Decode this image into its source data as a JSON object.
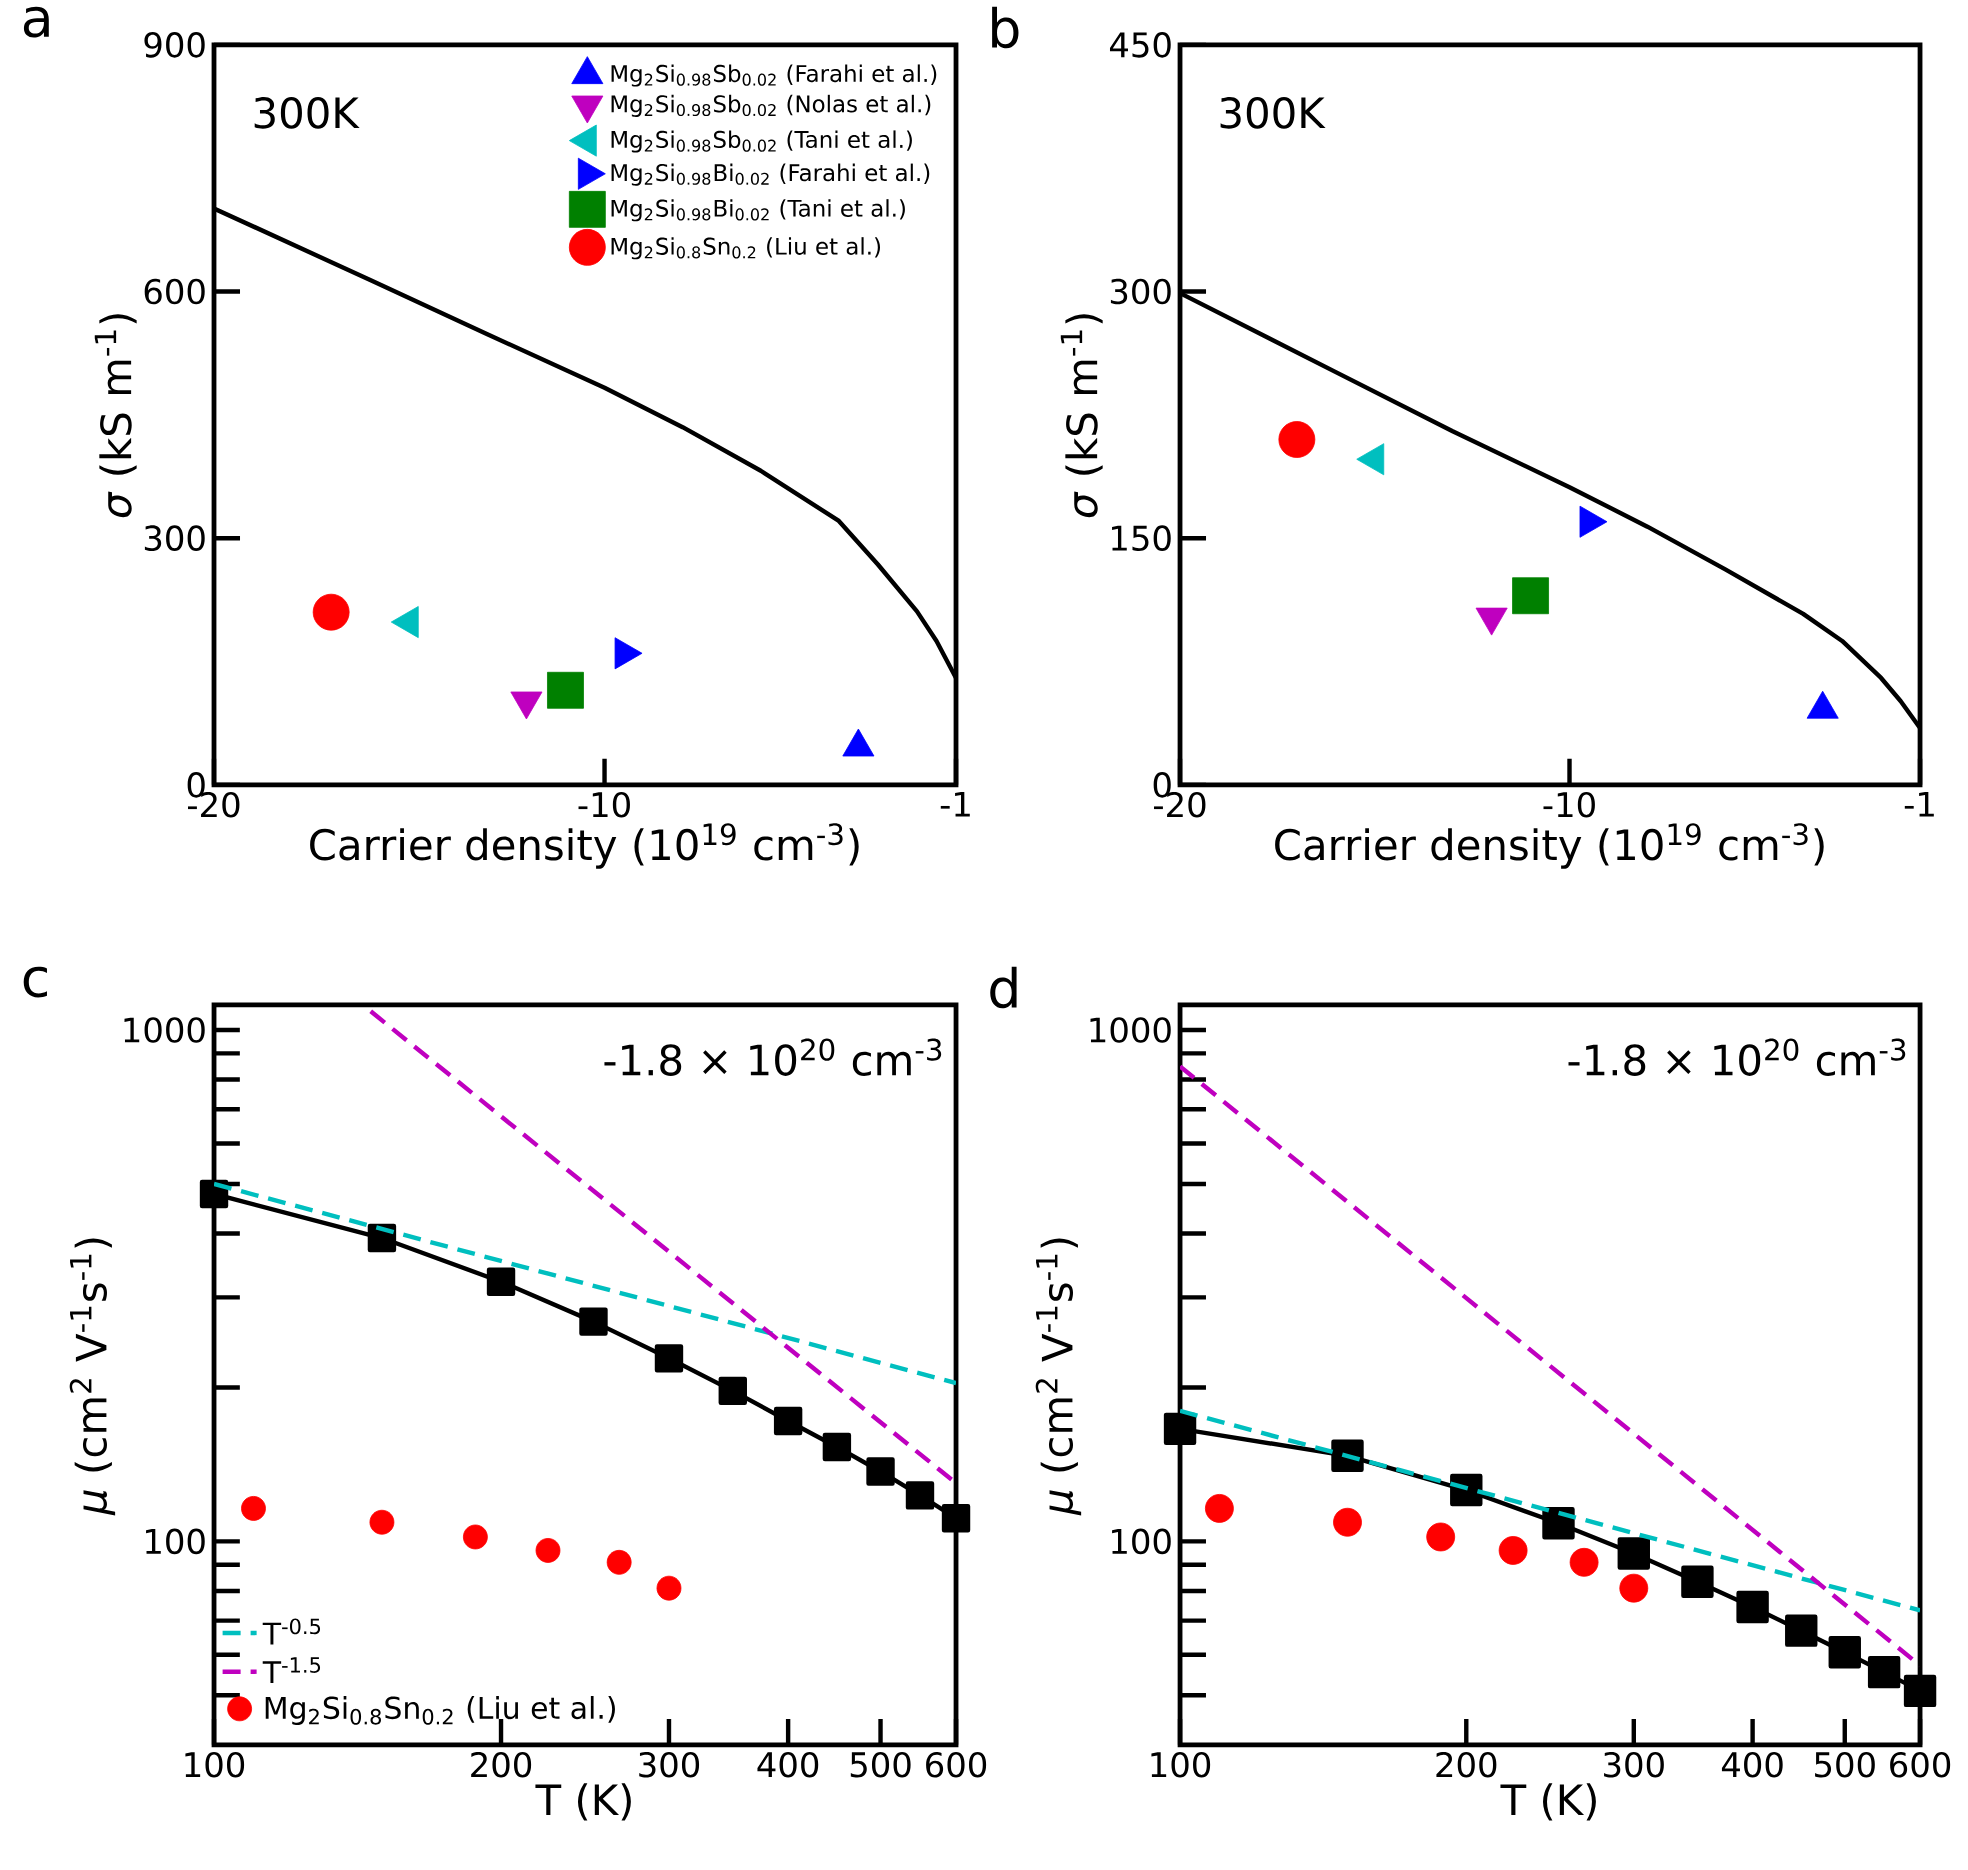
{
  "chart_data": [
    {
      "type": "scatter",
      "title": "a",
      "xlabel": "Carrier density (10$^{19}$ cm$^{-3}$)",
      "ylabel": "*σ* (kS m$^{-1}$)",
      "xlim": [
        -20,
        -1
      ],
      "ylim": [
        0,
        900
      ],
      "xticks": [
        -20,
        -10,
        -1
      ],
      "yticks": [
        0,
        300,
        600,
        900
      ],
      "annotations": [
        "300K"
      ],
      "legend": "top right",
      "series": [
        {
          "type": "line",
          "color": "#000000",
          "line_style": "solid",
          "marker": "none",
          "x": [
            -20,
            -16,
            -13,
            -10,
            -8,
            -6,
            -4,
            -3,
            -2,
            -1.5,
            -1
          ],
          "values": [
            701,
            614,
            548,
            483,
            435,
            382,
            321,
            268,
            211,
            175,
            130
          ]
        },
        {
          "name": "Mg$_{2}$Si$_{0.98}$Sb$_{0.02}$ (Farahi et al.)",
          "color": "#0000ff",
          "marker": "triangle",
          "x": [
            -3.5
          ],
          "values": [
            46
          ]
        },
        {
          "name": "Mg$_{2}$Si$_{0.98}$Sb$_{0.02}$ (Nolas et al.)",
          "color": "#bf00bf",
          "marker": "triangle-down",
          "x": [
            -12
          ],
          "values": [
            102
          ]
        },
        {
          "name": "Mg$_{2}$Si$_{0.98}$Sb$_{0.02}$ (Tani et al.)",
          "color": "#00bfbf",
          "marker": "triangle-left",
          "x": [
            -15
          ],
          "values": [
            198
          ]
        },
        {
          "name": "Mg$_{2}$Si$_{0.98}$Bi$_{0.02}$ (Farahi et al.)",
          "color": "#0000ff",
          "marker": "triangle-right",
          "x": [
            -9.5
          ],
          "values": [
            160
          ]
        },
        {
          "name": "Mg$_{2}$Si$_{0.98}$Bi$_{0.02}$ (Tani et al.)",
          "color": "#008000",
          "marker": "square",
          "x": [
            -11
          ],
          "values": [
            115
          ]
        },
        {
          "name": "Mg$_{2}$Si$_{0.8}$Sn$_{0.2}$ (Liu et al.)",
          "color": "#ff0000",
          "marker": "circle",
          "x": [
            -17
          ],
          "values": [
            210
          ]
        }
      ]
    },
    {
      "type": "scatter",
      "title": "b",
      "xlabel": "Carrier density (10$^{19}$ cm$^{-3}$)",
      "ylabel": "*σ* (kS m$^{-1}$)",
      "xlim": [
        -20,
        -1
      ],
      "ylim": [
        0,
        450
      ],
      "xticks": [
        -20,
        -10,
        -1
      ],
      "yticks": [
        0,
        150,
        300,
        450
      ],
      "annotations": [
        "300K"
      ],
      "series": [
        {
          "type": "line",
          "color": "#000000",
          "line_style": "solid",
          "marker": "none",
          "x": [
            -20,
            -16,
            -13,
            -10,
            -8,
            -6,
            -4,
            -3,
            -2,
            -1.5,
            -1
          ],
          "values": [
            299,
            251,
            215,
            181,
            157,
            131,
            104,
            87.5,
            65,
            51,
            34.6
          ]
        },
        {
          "color": "#0000ff",
          "marker": "triangle",
          "x": [
            -3.5
          ],
          "values": [
            46
          ]
        },
        {
          "color": "#bf00bf",
          "marker": "triangle-down",
          "x": [
            -12
          ],
          "values": [
            102
          ]
        },
        {
          "color": "#00bfbf",
          "marker": "triangle-left",
          "x": [
            -15
          ],
          "values": [
            198
          ]
        },
        {
          "color": "#0000ff",
          "marker": "triangle-right",
          "x": [
            -9.5
          ],
          "values": [
            160
          ]
        },
        {
          "color": "#008000",
          "marker": "square",
          "x": [
            -11
          ],
          "values": [
            115
          ]
        },
        {
          "color": "#ff0000",
          "marker": "circle",
          "x": [
            -17
          ],
          "values": [
            210
          ]
        }
      ]
    },
    {
      "type": "line",
      "title": "c",
      "xlabel": "T (K)",
      "ylabel": "*μ* (cm$^{2}$ V$^{-1}$s$^{-1}$)",
      "log": "xy",
      "xlim": [
        100,
        600
      ],
      "ylim": [
        40,
        1120
      ],
      "xticks": [
        100,
        200,
        300,
        400,
        500,
        600
      ],
      "yticks": [
        {
          "value": 50,
          "label": null
        },
        {
          "value": 60,
          "label": null
        },
        {
          "value": 70,
          "label": null
        },
        {
          "value": 80,
          "label": null
        },
        {
          "value": 90,
          "label": null
        },
        100,
        {
          "value": 200,
          "label": null
        },
        {
          "value": 300,
          "label": null
        },
        {
          "value": 400,
          "label": null
        },
        {
          "value": 500,
          "label": null
        },
        {
          "value": 600,
          "label": null
        },
        {
          "value": 700,
          "label": null
        },
        {
          "value": 800,
          "label": null
        },
        {
          "value": 900,
          "label": null
        },
        1000
      ],
      "annotations": [
        "-1.8 × 10$^{20}$ cm$^{-3}$"
      ],
      "legend": "bottom left",
      "series": [
        {
          "color": "#000000",
          "line_style": "solid",
          "marker": "square",
          "x": [
            100,
            150,
            200,
            250,
            300,
            350,
            400,
            450,
            500,
            550,
            600
          ],
          "values": [
            478,
            392,
            322,
            269,
            228,
            197,
            172,
            153,
            137,
            123,
            111
          ]
        },
        {
          "name": "T$^{-0.5}$",
          "color": "#00bfbf",
          "line_style": "dashed",
          "marker": "none",
          "x": [
            100,
            600
          ],
          "values": [
            500,
            204
          ]
        },
        {
          "name": "T$^{-1.5}$",
          "color": "#bf00bf",
          "line_style": "dashed",
          "marker": "none",
          "x": [
            146,
            600
          ],
          "values": [
            1088,
            130
          ]
        },
        {
          "name": "Mg$_{2}$Si$_{0.8}$Sn$_{0.2}$ (Liu et al.)",
          "type": "scatter",
          "color": "#ff0000",
          "marker": "circle",
          "x": [
            110,
            150,
            188,
            224,
            266,
            300
          ],
          "values": [
            116,
            109,
            102,
            96,
            91,
            81
          ]
        }
      ]
    },
    {
      "type": "line",
      "title": "d",
      "xlabel": "T (K)",
      "ylabel": "*μ* (cm$^{2}$ V$^{-1}$s$^{-1}$)",
      "log": "xy",
      "xlim": [
        100,
        600
      ],
      "ylim": [
        40,
        1120
      ],
      "xticks": [
        100,
        200,
        300,
        400,
        500,
        600
      ],
      "yticks": [
        {
          "value": 50,
          "label": null
        },
        {
          "value": 60,
          "label": null
        },
        {
          "value": 70,
          "label": null
        },
        {
          "value": 80,
          "label": null
        },
        {
          "value": 90,
          "label": null
        },
        100,
        {
          "value": 200,
          "label": null
        },
        {
          "value": 300,
          "label": null
        },
        {
          "value": 400,
          "label": null
        },
        {
          "value": 500,
          "label": null
        },
        {
          "value": 600,
          "label": null
        },
        {
          "value": 700,
          "label": null
        },
        {
          "value": 800,
          "label": null
        },
        {
          "value": 900,
          "label": null
        },
        1000
      ],
      "annotations": [
        "-1.8 × 10$^{20}$ cm$^{-3}$"
      ],
      "series": [
        {
          "color": "#000000",
          "line_style": "solid",
          "marker": "square",
          "x": [
            100,
            150,
            200,
            250,
            300,
            350,
            400,
            450,
            500,
            550,
            600
          ],
          "values": [
            166,
            147,
            126,
            108.5,
            94.7,
            83.4,
            74.4,
            66.9,
            60.7,
            55.5,
            51
          ]
        },
        {
          "color": "#00bfbf",
          "line_style": "dashed",
          "marker": "none",
          "x": [
            100,
            600
          ],
          "values": [
            180,
            73.3
          ]
        },
        {
          "color": "#bf00bf",
          "line_style": "dashed",
          "marker": "none",
          "x": [
            100,
            600
          ],
          "values": [
            849,
            57.2
          ]
        },
        {
          "type": "scatter",
          "color": "#ff0000",
          "marker": "circle",
          "x": [
            110,
            150,
            188,
            224,
            266,
            300
          ],
          "values": [
            116,
            109,
            102,
            96,
            91,
            81
          ]
        }
      ]
    }
  ]
}
